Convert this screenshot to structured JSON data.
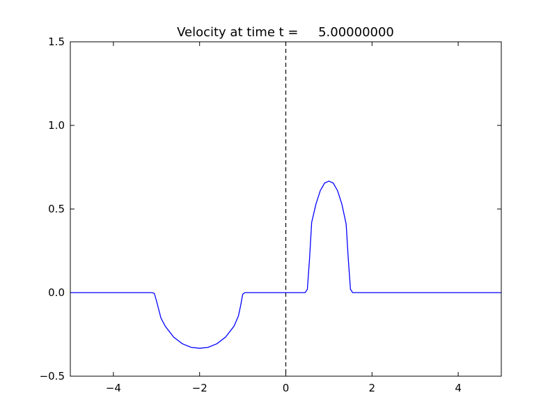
{
  "chart_data": {
    "type": "line",
    "title": "Velocity at time t =     5.00000000",
    "x": [
      -5,
      -3.1,
      -3.05,
      -3.0,
      -2.95,
      -2.9,
      -2.8,
      -2.6,
      -2.4,
      -2.2,
      -2.0,
      -1.8,
      -1.6,
      -1.4,
      -1.2,
      -1.1,
      -1.05,
      -1.0,
      -0.95,
      0.45,
      0.5,
      0.55,
      0.6,
      0.7,
      0.8,
      0.9,
      1.0,
      1.1,
      1.2,
      1.3,
      1.4,
      1.45,
      1.5,
      1.55,
      5
    ],
    "series": [
      {
        "color": "#0000ff",
        "values": [
          0,
          0,
          -0.005,
          -0.05,
          -0.1,
          -0.15,
          -0.2,
          -0.267,
          -0.306,
          -0.327,
          -0.333,
          -0.327,
          -0.306,
          -0.267,
          -0.2,
          -0.14,
          -0.08,
          -0.01,
          0,
          0,
          0.02,
          0.2,
          0.42,
          0.53,
          0.61,
          0.655,
          0.667,
          0.655,
          0.61,
          0.53,
          0.41,
          0.2,
          0.02,
          0,
          0
        ]
      }
    ],
    "vline": 0,
    "xlim": [
      -5,
      5
    ],
    "ylim": [
      -0.5,
      1.5
    ],
    "xticks": [
      {
        "value": -4,
        "label": "−4"
      },
      {
        "value": -2,
        "label": "−2"
      },
      0,
      2,
      4
    ],
    "yticks": [
      {
        "value": -0.5,
        "label": "−0.5"
      },
      {
        "value": 0,
        "label": "0.0"
      },
      0.5,
      {
        "value": 1,
        "label": "1.0"
      },
      1.5
    ]
  }
}
